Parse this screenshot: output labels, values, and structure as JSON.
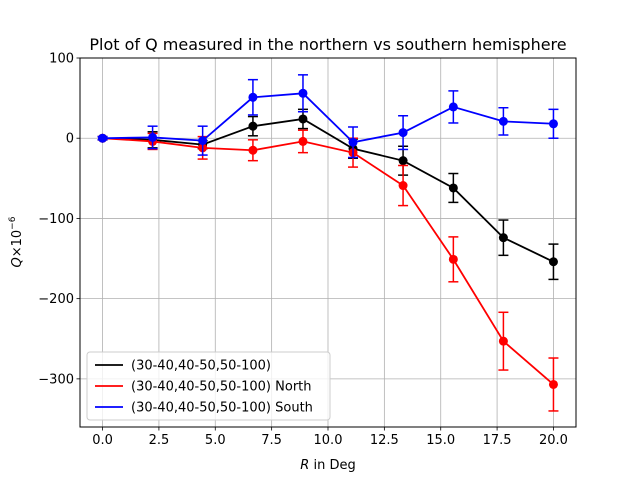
{
  "chart_data": {
    "type": "line",
    "title": "Plot of Q measured in the northern vs southern hemisphere",
    "xlabel_italic": "R",
    "xlabel_rest": " in Deg",
    "ylabel_base": "Q",
    "ylabel_times": "×10",
    "ylabel_exp": "−6",
    "xlim": [
      -1.0,
      21.0
    ],
    "ylim": [
      -360,
      100
    ],
    "xticks": [
      0.0,
      2.5,
      5.0,
      7.5,
      10.0,
      12.5,
      15.0,
      17.5,
      20.0
    ],
    "xtick_labels": [
      "0.0",
      "2.5",
      "5.0",
      "7.5",
      "10.0",
      "12.5",
      "15.0",
      "17.5",
      "20.0"
    ],
    "yticks": [
      100,
      0,
      -100,
      -200,
      -300
    ],
    "ytick_labels": [
      "100",
      "0",
      "−100",
      "−200",
      "−300"
    ],
    "grid": true,
    "legend_position": "lower-left",
    "x": [
      0.0,
      2.22,
      4.44,
      6.67,
      8.89,
      11.11,
      13.33,
      15.56,
      17.78,
      20.0
    ],
    "series": [
      {
        "name": "(30-40,40-50,50-100)",
        "color": "#000000",
        "values": [
          0,
          -2,
          -8,
          15,
          24,
          -13,
          -28,
          -62,
          -124,
          -154
        ],
        "errors": [
          2,
          10,
          5,
          12,
          12,
          12,
          18,
          18,
          22,
          22
        ]
      },
      {
        "name": "(30-40,40-50,50-100) North",
        "color": "#ff0000",
        "values": [
          0,
          -4,
          -12,
          -15,
          -4,
          -18,
          -59,
          -151,
          -253,
          -307
        ],
        "errors": [
          2,
          10,
          14,
          13,
          14,
          18,
          25,
          28,
          36,
          33
        ]
      },
      {
        "name": "(30-40,40-50,50-100) South",
        "color": "#0000ff",
        "values": [
          0,
          1,
          -3,
          51,
          56,
          -5,
          7,
          39,
          21,
          18
        ],
        "errors": [
          2,
          14,
          18,
          22,
          23,
          19,
          21,
          20,
          17,
          18
        ]
      }
    ]
  }
}
